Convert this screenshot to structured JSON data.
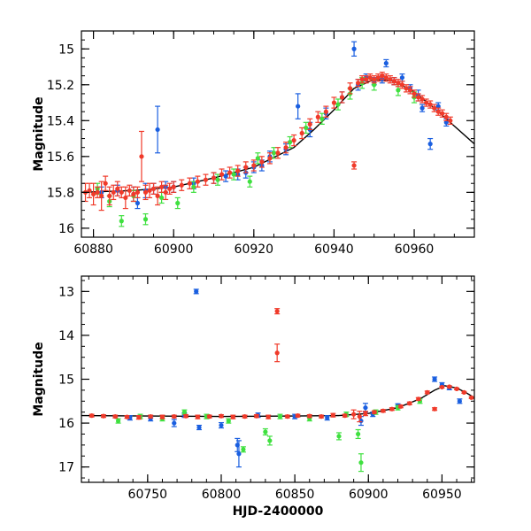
{
  "colors": {
    "blue": "#1a5fe0",
    "green": "#3fe03f",
    "red": "#f03a2a",
    "model": "#000000"
  },
  "chart_data": [
    {
      "type": "scatter",
      "title": "",
      "xlabel": "",
      "ylabel": "Magnitude",
      "xlim": [
        60877,
        60975
      ],
      "ylim": [
        16.05,
        14.9
      ],
      "y_inverted": true,
      "xticks": [
        60880,
        60900,
        60920,
        60940,
        60960
      ],
      "yticks": [
        15,
        15.2,
        15.4,
        15.6,
        15.8,
        16
      ],
      "ytick_labels": [
        "15",
        "15.2",
        "15.4",
        "15.6",
        "15.8",
        "16"
      ],
      "series": [
        {
          "name": "blue",
          "color": "#1a5fe0",
          "x": [
            60882,
            60886,
            60890,
            60891,
            60893,
            60895,
            60896,
            60898,
            60900,
            60905,
            60910,
            60913,
            60916,
            60918,
            60920,
            60922,
            60924,
            60928,
            60931,
            60934,
            60938,
            60942,
            60945,
            60946,
            60948,
            60950,
            60952,
            60953,
            60955,
            60957,
            60959,
            60961,
            60962,
            60964,
            60966,
            60968
          ],
          "y": [
            15.8,
            15.79,
            15.81,
            15.86,
            15.79,
            15.78,
            15.45,
            15.77,
            15.77,
            15.75,
            15.72,
            15.71,
            15.7,
            15.69,
            15.66,
            15.65,
            15.6,
            15.56,
            15.32,
            15.45,
            15.36,
            15.27,
            15.0,
            15.2,
            15.16,
            15.18,
            15.17,
            15.08,
            15.18,
            15.16,
            15.22,
            15.26,
            15.33,
            15.53,
            15.32,
            15.41
          ],
          "err": [
            0.03,
            0.03,
            0.04,
            0.03,
            0.04,
            0.03,
            0.13,
            0.03,
            0.03,
            0.03,
            0.03,
            0.03,
            0.03,
            0.03,
            0.03,
            0.03,
            0.03,
            0.03,
            0.07,
            0.04,
            0.03,
            0.03,
            0.04,
            0.03,
            0.02,
            0.02,
            0.02,
            0.02,
            0.02,
            0.02,
            0.02,
            0.03,
            0.02,
            0.03,
            0.02,
            0.02
          ]
        },
        {
          "name": "green",
          "color": "#3fe03f",
          "x": [
            60881,
            60884,
            60887,
            60890,
            60893,
            60897,
            60901,
            60905,
            60911,
            60915,
            60919,
            60921,
            60925,
            60929,
            60933,
            60937,
            60941,
            60944,
            60947,
            60950,
            60956,
            60960
          ],
          "y": [
            15.78,
            15.85,
            15.96,
            15.82,
            15.95,
            15.83,
            15.86,
            15.77,
            15.73,
            15.7,
            15.74,
            15.61,
            15.58,
            15.52,
            15.44,
            15.39,
            15.31,
            15.25,
            15.19,
            15.2,
            15.23,
            15.27
          ],
          "err": [
            0.03,
            0.03,
            0.03,
            0.03,
            0.03,
            0.03,
            0.03,
            0.03,
            0.03,
            0.03,
            0.03,
            0.03,
            0.03,
            0.03,
            0.03,
            0.03,
            0.03,
            0.03,
            0.03,
            0.03,
            0.03,
            0.03
          ]
        },
        {
          "name": "red",
          "color": "#f03a2a",
          "x": [
            60878,
            60879,
            60880,
            60881,
            60882,
            60883,
            60884,
            60885,
            60886,
            60887,
            60888,
            60889,
            60890,
            60891,
            60892,
            60893,
            60894,
            60895,
            60896,
            60897,
            60898,
            60899,
            60900,
            60902,
            60904,
            60906,
            60908,
            60910,
            60912,
            60914,
            60916,
            60918,
            60920,
            60922,
            60924,
            60926,
            60928,
            60930,
            60932,
            60934,
            60936,
            60938,
            60940,
            60942,
            60944,
            60945,
            60946,
            60947,
            60948,
            60949,
            60950,
            60951,
            60952,
            60953,
            60954,
            60955,
            60956,
            60957,
            60958,
            60959,
            60960,
            60961,
            60962,
            60963,
            60964,
            60965,
            60966,
            60967,
            60968,
            60969
          ],
          "y": [
            15.8,
            15.79,
            15.81,
            15.8,
            15.82,
            15.75,
            15.82,
            15.8,
            15.78,
            15.8,
            15.83,
            15.79,
            15.81,
            15.8,
            15.6,
            15.8,
            15.79,
            15.78,
            15.82,
            15.77,
            15.8,
            15.78,
            15.77,
            15.76,
            15.75,
            15.74,
            15.73,
            15.72,
            15.7,
            15.69,
            15.68,
            15.66,
            15.65,
            15.63,
            15.61,
            15.58,
            15.55,
            15.51,
            15.47,
            15.42,
            15.38,
            15.35,
            15.3,
            15.27,
            15.22,
            15.65,
            15.19,
            15.17,
            15.17,
            15.16,
            15.17,
            15.16,
            15.15,
            15.16,
            15.17,
            15.18,
            15.19,
            15.2,
            15.22,
            15.23,
            15.25,
            15.27,
            15.28,
            15.3,
            15.31,
            15.33,
            15.35,
            15.36,
            15.38,
            15.4
          ],
          "err": [
            0.05,
            0.04,
            0.06,
            0.03,
            0.08,
            0.04,
            0.05,
            0.04,
            0.04,
            0.03,
            0.06,
            0.03,
            0.04,
            0.03,
            0.14,
            0.04,
            0.04,
            0.03,
            0.05,
            0.03,
            0.04,
            0.03,
            0.03,
            0.03,
            0.03,
            0.03,
            0.03,
            0.03,
            0.03,
            0.03,
            0.03,
            0.03,
            0.03,
            0.03,
            0.03,
            0.03,
            0.03,
            0.03,
            0.03,
            0.03,
            0.03,
            0.03,
            0.03,
            0.03,
            0.03,
            0.02,
            0.02,
            0.02,
            0.02,
            0.02,
            0.02,
            0.02,
            0.02,
            0.02,
            0.02,
            0.02,
            0.02,
            0.02,
            0.02,
            0.02,
            0.02,
            0.02,
            0.02,
            0.02,
            0.02,
            0.02,
            0.02,
            0.02,
            0.02,
            0.02
          ]
        }
      ],
      "model_curve": {
        "x": [
          60877,
          60890,
          60900,
          60910,
          60920,
          60930,
          60935,
          60940,
          60945,
          60950,
          60955,
          60960,
          60965,
          60970,
          60975
        ],
        "y": [
          15.8,
          15.79,
          15.77,
          15.72,
          15.66,
          15.55,
          15.45,
          15.34,
          15.22,
          15.17,
          15.18,
          15.24,
          15.33,
          15.43,
          15.53
        ]
      }
    },
    {
      "type": "scatter",
      "title": "",
      "xlabel": "HJD-2400000",
      "ylabel": "Magnitude",
      "xlim": [
        60705,
        60972
      ],
      "ylim": [
        17.35,
        12.65
      ],
      "y_inverted": true,
      "xticks": [
        60750,
        60800,
        60850,
        60900,
        60950
      ],
      "yticks": [
        13,
        14,
        15,
        16,
        17
      ],
      "ytick_labels": [
        "13",
        "14",
        "15",
        "16",
        "17"
      ],
      "series": [
        {
          "name": "blue",
          "color": "#1a5fe0",
          "x": [
            60738,
            60752,
            60768,
            60775,
            60783,
            60785,
            60800,
            60811,
            60812,
            60825,
            60850,
            60872,
            60895,
            60898,
            60903,
            60920,
            60945,
            60950,
            60955,
            60962
          ],
          "y": [
            15.88,
            15.9,
            16.0,
            15.82,
            13.0,
            16.1,
            16.05,
            16.5,
            16.7,
            15.82,
            15.85,
            15.88,
            15.95,
            15.65,
            15.8,
            15.6,
            15.0,
            15.12,
            15.2,
            15.5
          ],
          "err": [
            0.05,
            0.05,
            0.08,
            0.05,
            0.05,
            0.05,
            0.06,
            0.15,
            0.3,
            0.05,
            0.05,
            0.05,
            0.1,
            0.1,
            0.05,
            0.04,
            0.05,
            0.04,
            0.04,
            0.05
          ]
        },
        {
          "name": "green",
          "color": "#3fe03f",
          "x": [
            60730,
            60745,
            60760,
            60775,
            60790,
            60805,
            60815,
            60830,
            60833,
            60840,
            60860,
            60880,
            60885,
            60893,
            60895,
            60905,
            60920,
            60935
          ],
          "y": [
            15.95,
            15.85,
            15.9,
            15.75,
            15.85,
            15.95,
            16.6,
            16.2,
            16.4,
            15.85,
            15.9,
            16.3,
            15.8,
            16.25,
            16.9,
            15.75,
            15.65,
            15.5
          ],
          "err": [
            0.05,
            0.05,
            0.05,
            0.05,
            0.05,
            0.05,
            0.06,
            0.07,
            0.1,
            0.05,
            0.05,
            0.08,
            0.05,
            0.1,
            0.2,
            0.05,
            0.05,
            0.05
          ]
        },
        {
          "name": "red",
          "color": "#f03a2a",
          "x": [
            60712,
            60720,
            60728,
            60736,
            60744,
            60752,
            60760,
            60768,
            60776,
            60784,
            60792,
            60800,
            60808,
            60816,
            60824,
            60832,
            60838,
            60838,
            60845,
            60852,
            60860,
            60868,
            60876,
            60884,
            60890,
            60894,
            60898,
            60904,
            60910,
            60916,
            60922,
            60928,
            60934,
            60940,
            60945,
            60950,
            60955,
            60960,
            60965,
            60970
          ],
          "y": [
            15.83,
            15.84,
            15.85,
            15.86,
            15.87,
            15.85,
            15.86,
            15.85,
            15.84,
            15.86,
            15.85,
            15.84,
            15.86,
            15.85,
            15.84,
            15.86,
            13.45,
            14.4,
            15.85,
            15.83,
            15.84,
            15.85,
            15.82,
            15.83,
            15.8,
            15.85,
            15.78,
            15.75,
            15.72,
            15.68,
            15.62,
            15.55,
            15.45,
            15.3,
            15.68,
            15.18,
            15.17,
            15.22,
            15.3,
            15.42
          ],
          "err": [
            0.03,
            0.03,
            0.03,
            0.03,
            0.04,
            0.03,
            0.04,
            0.03,
            0.03,
            0.04,
            0.03,
            0.03,
            0.04,
            0.03,
            0.03,
            0.04,
            0.06,
            0.2,
            0.03,
            0.03,
            0.03,
            0.03,
            0.04,
            0.03,
            0.1,
            0.12,
            0.05,
            0.03,
            0.03,
            0.03,
            0.03,
            0.03,
            0.03,
            0.03,
            0.03,
            0.02,
            0.02,
            0.02,
            0.02,
            0.02
          ]
        }
      ],
      "model_curve": {
        "x": [
          60705,
          60750,
          60800,
          60850,
          60880,
          60900,
          60920,
          60935,
          60945,
          60952,
          60960,
          60966,
          60972
        ],
        "y": [
          15.83,
          15.84,
          15.85,
          15.84,
          15.83,
          15.78,
          15.65,
          15.45,
          15.25,
          15.15,
          15.2,
          15.3,
          15.42
        ]
      }
    }
  ]
}
